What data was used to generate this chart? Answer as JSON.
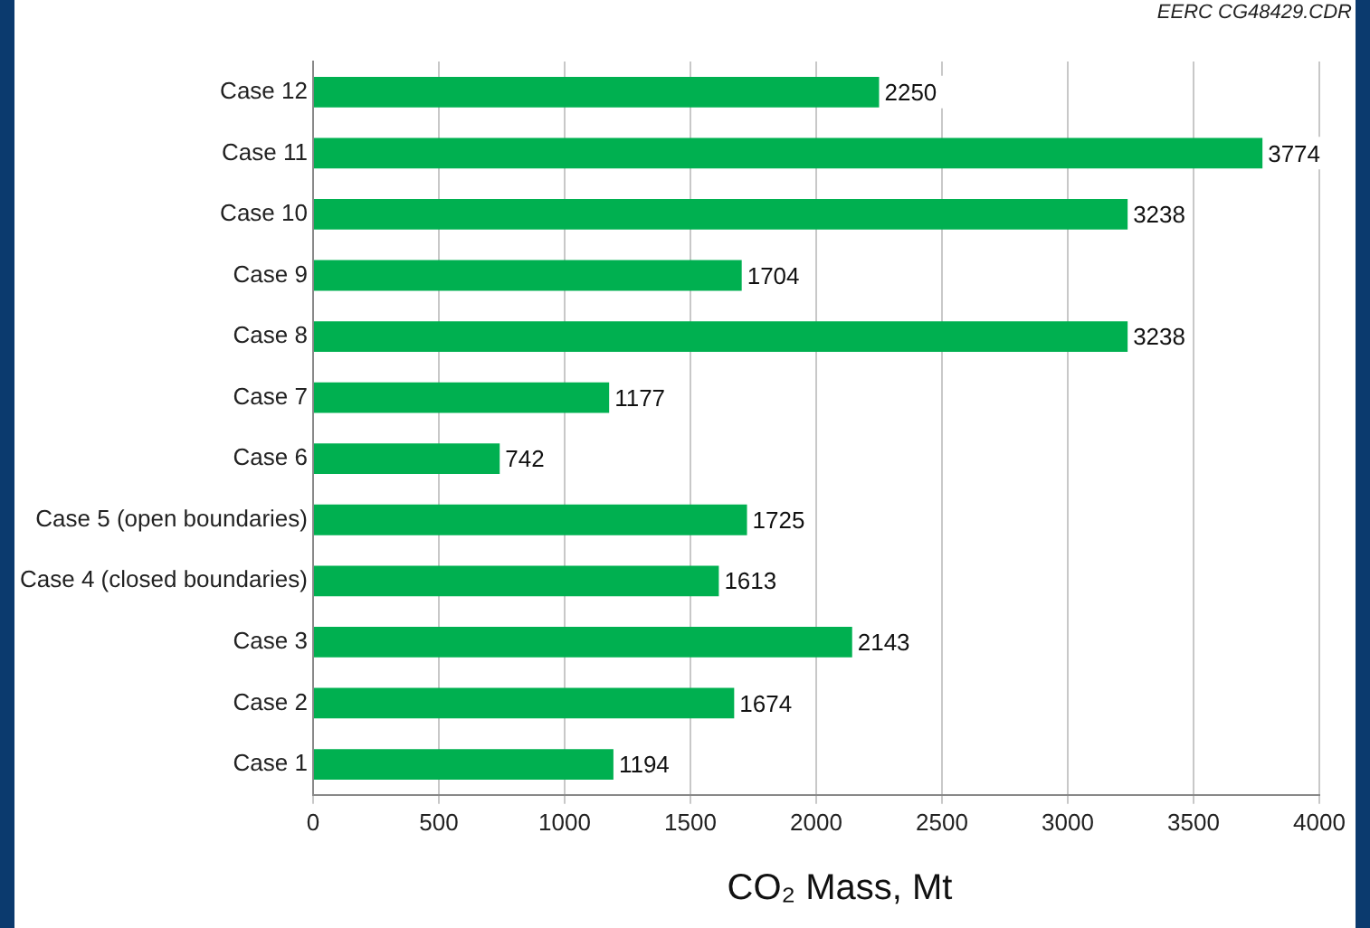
{
  "chart_data": {
    "type": "bar",
    "orientation": "horizontal",
    "categories": [
      "Case 12",
      "Case 11",
      "Case 10",
      "Case 9",
      "Case 8",
      "Case 7",
      "Case 6",
      "Case 5 (open boundaries)",
      "Case 4 (closed boundaries)",
      "Case 3",
      "Case 2",
      "Case 1"
    ],
    "values": [
      2250,
      3774,
      3238,
      1704,
      3238,
      1177,
      742,
      1725,
      1613,
      2143,
      1674,
      1194
    ],
    "color": "#00b050",
    "xlabel": "CO₂ Mass, Mt",
    "xlim": [
      0,
      4000
    ],
    "xticks": [
      0,
      500,
      1000,
      1500,
      2000,
      2500,
      3000,
      3500,
      4000
    ],
    "grid": "x",
    "data_labels": true,
    "legend": false,
    "annotations": [
      "EERC CG48429.CDR"
    ]
  }
}
